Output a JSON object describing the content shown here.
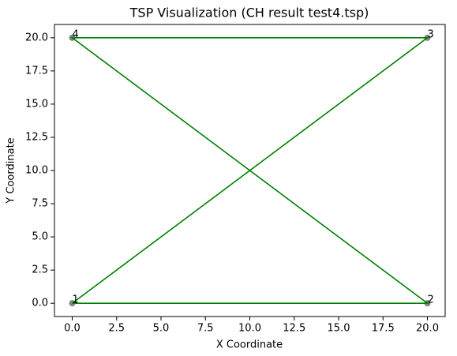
{
  "chart_data": {
    "type": "scatter",
    "title": "TSP Visualization (CH result test4.tsp)",
    "x_label": "X Coordinate",
    "y_label": "Y Coordinate",
    "points": {
      "x": [
        0,
        20,
        20,
        0
      ],
      "y": [
        0,
        0,
        20,
        20
      ],
      "labels": [
        "1",
        "2",
        "3",
        "4"
      ],
      "color": "#6e6e6e"
    },
    "tour": {
      "x": [
        0,
        20,
        0,
        20,
        0
      ],
      "y": [
        0,
        0,
        20,
        20,
        0
      ],
      "color": "#008000"
    },
    "xlim": [
      -1,
      21
    ],
    "ylim": [
      -1,
      21
    ],
    "xticks": [
      {
        "value": 0,
        "label": "0.0"
      },
      {
        "value": 2.5,
        "label": "2.5"
      },
      {
        "value": 5,
        "label": "5.0"
      },
      {
        "value": 7.5,
        "label": "7.5"
      },
      {
        "value": 10,
        "label": "10.0"
      },
      {
        "value": 12.5,
        "label": "12.5"
      },
      {
        "value": 15,
        "label": "15.0"
      },
      {
        "value": 17.5,
        "label": "17.5"
      },
      {
        "value": 20,
        "label": "20.0"
      }
    ],
    "yticks": [
      {
        "value": 0,
        "label": "0.0"
      },
      {
        "value": 2.5,
        "label": "2.5"
      },
      {
        "value": 5,
        "label": "5.0"
      },
      {
        "value": 7.5,
        "label": "7.5"
      },
      {
        "value": 10,
        "label": "10.0"
      },
      {
        "value": 12.5,
        "label": "12.5"
      },
      {
        "value": 15,
        "label": "15.0"
      },
      {
        "value": 17.5,
        "label": "17.5"
      },
      {
        "value": 20,
        "label": "20.0"
      }
    ]
  }
}
